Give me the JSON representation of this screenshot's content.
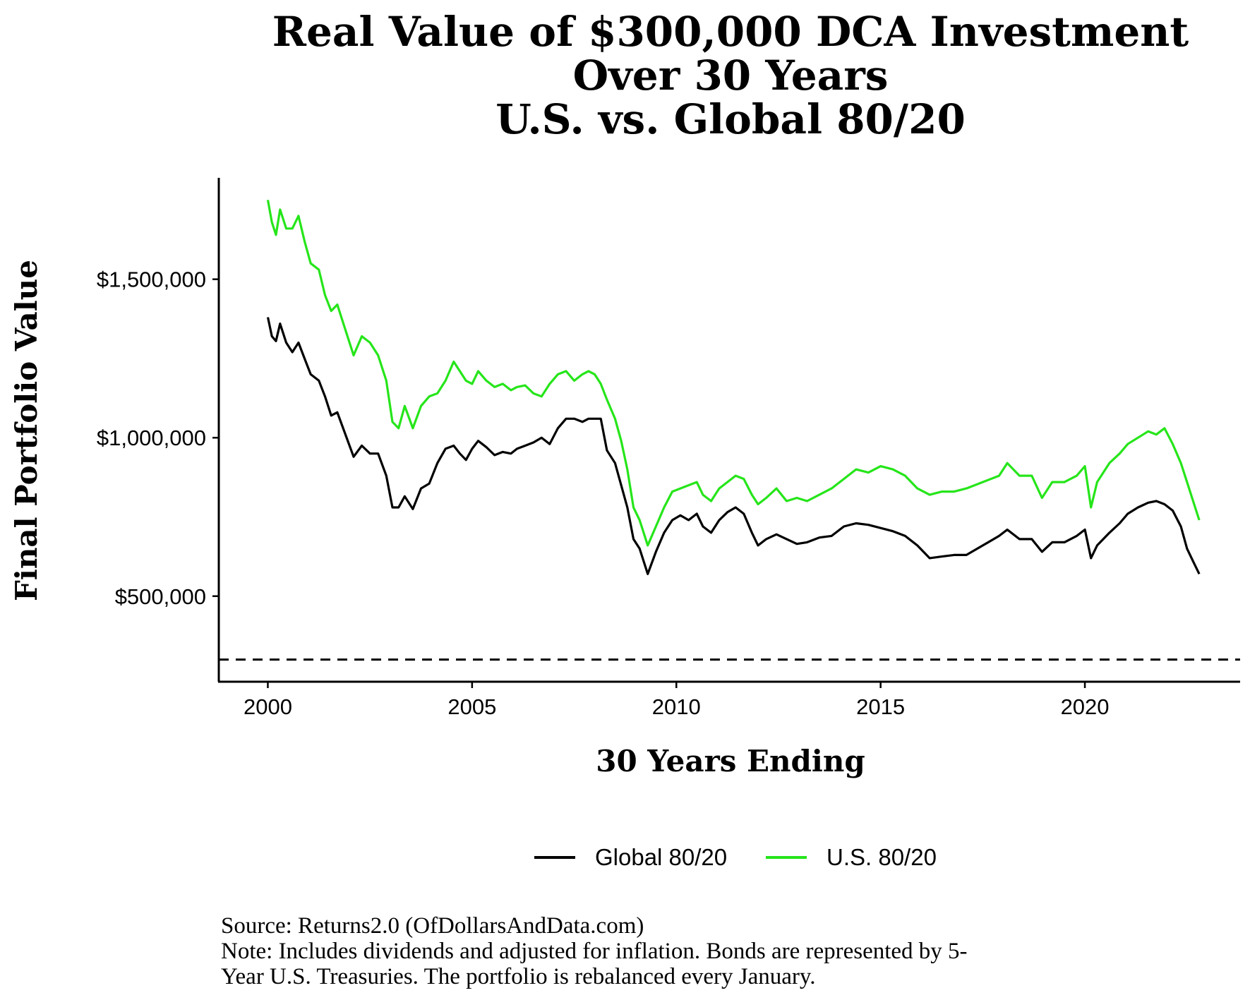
{
  "chart_data": {
    "type": "line",
    "title_lines": [
      "Real Value of $300,000 DCA Investment",
      "Over 30 Years",
      "U.S. vs. Global 80/20"
    ],
    "xlabel": "30 Years Ending",
    "ylabel": "Final Portfolio Value",
    "xlim": [
      1998.8,
      2023.8
    ],
    "ylim": [
      230000,
      1820000
    ],
    "x_ticks": [
      2000,
      2005,
      2010,
      2015,
      2020
    ],
    "x_tick_labels": [
      "2000",
      "2005",
      "2010",
      "2015",
      "2020"
    ],
    "y_ticks": [
      500000,
      1000000,
      1500000
    ],
    "y_tick_labels": [
      "$500,000",
      "$1,000,000",
      "$1,500,000"
    ],
    "reference_line": {
      "y": 300000,
      "style": "dashed",
      "color": "#000000"
    },
    "grid": false,
    "legend_position": "bottom",
    "series": [
      {
        "name": "Global 80/20",
        "color": "#000000",
        "points": [
          [
            2000.0,
            1380000
          ],
          [
            2000.1,
            1320000
          ],
          [
            2000.2,
            1305000
          ],
          [
            2000.3,
            1360000
          ],
          [
            2000.45,
            1300000
          ],
          [
            2000.6,
            1270000
          ],
          [
            2000.75,
            1300000
          ],
          [
            2000.9,
            1250000
          ],
          [
            2001.05,
            1200000
          ],
          [
            2001.25,
            1180000
          ],
          [
            2001.4,
            1130000
          ],
          [
            2001.55,
            1070000
          ],
          [
            2001.7,
            1080000
          ],
          [
            2001.9,
            1010000
          ],
          [
            2002.1,
            940000
          ],
          [
            2002.3,
            975000
          ],
          [
            2002.5,
            950000
          ],
          [
            2002.7,
            950000
          ],
          [
            2002.9,
            880000
          ],
          [
            2003.05,
            780000
          ],
          [
            2003.2,
            780000
          ],
          [
            2003.35,
            815000
          ],
          [
            2003.55,
            775000
          ],
          [
            2003.75,
            840000
          ],
          [
            2003.95,
            855000
          ],
          [
            2004.15,
            920000
          ],
          [
            2004.35,
            965000
          ],
          [
            2004.55,
            975000
          ],
          [
            2004.7,
            950000
          ],
          [
            2004.85,
            930000
          ],
          [
            2005.0,
            965000
          ],
          [
            2005.15,
            990000
          ],
          [
            2005.35,
            970000
          ],
          [
            2005.55,
            945000
          ],
          [
            2005.75,
            955000
          ],
          [
            2005.95,
            950000
          ],
          [
            2006.1,
            965000
          ],
          [
            2006.3,
            975000
          ],
          [
            2006.5,
            985000
          ],
          [
            2006.7,
            1000000
          ],
          [
            2006.9,
            980000
          ],
          [
            2007.1,
            1030000
          ],
          [
            2007.3,
            1060000
          ],
          [
            2007.5,
            1060000
          ],
          [
            2007.7,
            1050000
          ],
          [
            2007.85,
            1060000
          ],
          [
            2008.0,
            1060000
          ],
          [
            2008.15,
            1060000
          ],
          [
            2008.3,
            960000
          ],
          [
            2008.5,
            920000
          ],
          [
            2008.65,
            850000
          ],
          [
            2008.8,
            780000
          ],
          [
            2008.95,
            680000
          ],
          [
            2009.1,
            650000
          ],
          [
            2009.3,
            570000
          ],
          [
            2009.5,
            640000
          ],
          [
            2009.7,
            700000
          ],
          [
            2009.9,
            740000
          ],
          [
            2010.1,
            755000
          ],
          [
            2010.3,
            740000
          ],
          [
            2010.5,
            760000
          ],
          [
            2010.65,
            720000
          ],
          [
            2010.85,
            700000
          ],
          [
            2011.05,
            740000
          ],
          [
            2011.25,
            765000
          ],
          [
            2011.45,
            780000
          ],
          [
            2011.65,
            760000
          ],
          [
            2011.85,
            700000
          ],
          [
            2012.0,
            660000
          ],
          [
            2012.2,
            680000
          ],
          [
            2012.45,
            695000
          ],
          [
            2012.7,
            680000
          ],
          [
            2012.95,
            665000
          ],
          [
            2013.2,
            670000
          ],
          [
            2013.5,
            685000
          ],
          [
            2013.8,
            690000
          ],
          [
            2014.1,
            720000
          ],
          [
            2014.4,
            730000
          ],
          [
            2014.7,
            725000
          ],
          [
            2015.0,
            715000
          ],
          [
            2015.3,
            705000
          ],
          [
            2015.6,
            690000
          ],
          [
            2015.9,
            660000
          ],
          [
            2016.2,
            620000
          ],
          [
            2016.5,
            625000
          ],
          [
            2016.8,
            630000
          ],
          [
            2017.1,
            630000
          ],
          [
            2017.5,
            660000
          ],
          [
            2017.9,
            690000
          ],
          [
            2018.1,
            710000
          ],
          [
            2018.4,
            680000
          ],
          [
            2018.7,
            680000
          ],
          [
            2018.95,
            640000
          ],
          [
            2019.2,
            670000
          ],
          [
            2019.5,
            670000
          ],
          [
            2019.8,
            690000
          ],
          [
            2020.0,
            710000
          ],
          [
            2020.15,
            620000
          ],
          [
            2020.3,
            660000
          ],
          [
            2020.6,
            700000
          ],
          [
            2020.85,
            730000
          ],
          [
            2021.05,
            760000
          ],
          [
            2021.3,
            780000
          ],
          [
            2021.55,
            795000
          ],
          [
            2021.75,
            800000
          ],
          [
            2021.95,
            790000
          ],
          [
            2022.15,
            770000
          ],
          [
            2022.35,
            720000
          ],
          [
            2022.5,
            650000
          ],
          [
            2022.65,
            610000
          ],
          [
            2022.8,
            570000
          ]
        ]
      },
      {
        "name": "U.S. 80/20",
        "color": "#26e51a",
        "points": [
          [
            2000.0,
            1750000
          ],
          [
            2000.1,
            1680000
          ],
          [
            2000.2,
            1640000
          ],
          [
            2000.3,
            1720000
          ],
          [
            2000.45,
            1660000
          ],
          [
            2000.6,
            1660000
          ],
          [
            2000.75,
            1700000
          ],
          [
            2000.9,
            1620000
          ],
          [
            2001.05,
            1550000
          ],
          [
            2001.25,
            1530000
          ],
          [
            2001.4,
            1450000
          ],
          [
            2001.55,
            1400000
          ],
          [
            2001.7,
            1420000
          ],
          [
            2001.9,
            1340000
          ],
          [
            2002.1,
            1260000
          ],
          [
            2002.3,
            1320000
          ],
          [
            2002.5,
            1300000
          ],
          [
            2002.7,
            1260000
          ],
          [
            2002.9,
            1180000
          ],
          [
            2003.05,
            1050000
          ],
          [
            2003.2,
            1030000
          ],
          [
            2003.35,
            1100000
          ],
          [
            2003.55,
            1030000
          ],
          [
            2003.75,
            1100000
          ],
          [
            2003.95,
            1130000
          ],
          [
            2004.15,
            1140000
          ],
          [
            2004.35,
            1180000
          ],
          [
            2004.55,
            1240000
          ],
          [
            2004.7,
            1210000
          ],
          [
            2004.85,
            1180000
          ],
          [
            2005.0,
            1170000
          ],
          [
            2005.15,
            1210000
          ],
          [
            2005.35,
            1180000
          ],
          [
            2005.55,
            1160000
          ],
          [
            2005.75,
            1170000
          ],
          [
            2005.95,
            1150000
          ],
          [
            2006.1,
            1160000
          ],
          [
            2006.3,
            1165000
          ],
          [
            2006.5,
            1140000
          ],
          [
            2006.7,
            1130000
          ],
          [
            2006.9,
            1170000
          ],
          [
            2007.1,
            1200000
          ],
          [
            2007.3,
            1210000
          ],
          [
            2007.5,
            1180000
          ],
          [
            2007.7,
            1200000
          ],
          [
            2007.85,
            1210000
          ],
          [
            2008.0,
            1200000
          ],
          [
            2008.15,
            1170000
          ],
          [
            2008.3,
            1120000
          ],
          [
            2008.5,
            1060000
          ],
          [
            2008.65,
            990000
          ],
          [
            2008.8,
            900000
          ],
          [
            2008.95,
            780000
          ],
          [
            2009.1,
            740000
          ],
          [
            2009.3,
            660000
          ],
          [
            2009.5,
            720000
          ],
          [
            2009.7,
            780000
          ],
          [
            2009.9,
            830000
          ],
          [
            2010.1,
            840000
          ],
          [
            2010.3,
            850000
          ],
          [
            2010.5,
            860000
          ],
          [
            2010.65,
            820000
          ],
          [
            2010.85,
            800000
          ],
          [
            2011.05,
            840000
          ],
          [
            2011.25,
            860000
          ],
          [
            2011.45,
            880000
          ],
          [
            2011.65,
            870000
          ],
          [
            2011.85,
            820000
          ],
          [
            2012.0,
            790000
          ],
          [
            2012.2,
            810000
          ],
          [
            2012.45,
            840000
          ],
          [
            2012.7,
            800000
          ],
          [
            2012.95,
            810000
          ],
          [
            2013.2,
            800000
          ],
          [
            2013.5,
            820000
          ],
          [
            2013.8,
            840000
          ],
          [
            2014.1,
            870000
          ],
          [
            2014.4,
            900000
          ],
          [
            2014.7,
            890000
          ],
          [
            2015.0,
            910000
          ],
          [
            2015.3,
            900000
          ],
          [
            2015.6,
            880000
          ],
          [
            2015.9,
            840000
          ],
          [
            2016.2,
            820000
          ],
          [
            2016.5,
            830000
          ],
          [
            2016.8,
            830000
          ],
          [
            2017.1,
            840000
          ],
          [
            2017.5,
            860000
          ],
          [
            2017.9,
            880000
          ],
          [
            2018.1,
            920000
          ],
          [
            2018.4,
            880000
          ],
          [
            2018.7,
            880000
          ],
          [
            2018.95,
            810000
          ],
          [
            2019.2,
            860000
          ],
          [
            2019.5,
            860000
          ],
          [
            2019.8,
            880000
          ],
          [
            2020.0,
            910000
          ],
          [
            2020.15,
            780000
          ],
          [
            2020.3,
            860000
          ],
          [
            2020.6,
            920000
          ],
          [
            2020.85,
            950000
          ],
          [
            2021.05,
            980000
          ],
          [
            2021.3,
            1000000
          ],
          [
            2021.55,
            1020000
          ],
          [
            2021.75,
            1010000
          ],
          [
            2021.95,
            1030000
          ],
          [
            2022.15,
            980000
          ],
          [
            2022.35,
            920000
          ],
          [
            2022.5,
            860000
          ],
          [
            2022.65,
            800000
          ],
          [
            2022.8,
            740000
          ]
        ]
      }
    ]
  },
  "source_note": "Source: Returns2.0 (OfDollarsAndData.com)",
  "note_lines": [
    "Note: Includes dividends and adjusted for inflation. Bonds are represented by 5-",
    "Year U.S. Treasuries. The portfolio is rebalanced every January."
  ]
}
